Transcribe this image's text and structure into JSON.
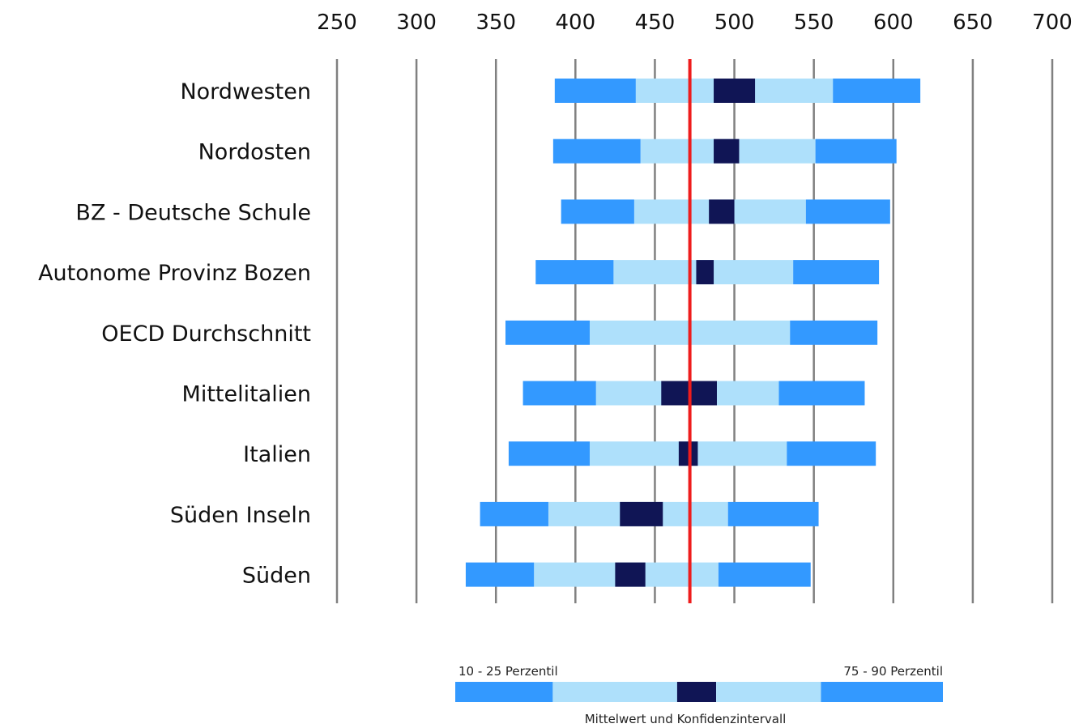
{
  "chart_data": {
    "type": "bar",
    "orientation": "horizontal-percentile-bands",
    "x_axis": {
      "ticks": [
        250,
        300,
        350,
        400,
        450,
        500,
        550,
        600,
        650,
        700
      ],
      "range": [
        250,
        700
      ],
      "position": "top",
      "grid": true
    },
    "reference_line": {
      "value": 472,
      "color": "#ee1c1c"
    },
    "categories": [
      "Nordwesten",
      "Nordosten",
      "BZ - Deutsche Schule",
      "Autonome Provinz Bozen",
      "OECD Durchschnitt",
      "Mittelitalien",
      "Italien",
      "Süden Inseln",
      "Süden"
    ],
    "rows": [
      {
        "p10": 387,
        "p25": 438,
        "ci_low": 487,
        "ci_high": 513,
        "p75": 562,
        "p90": 617
      },
      {
        "p10": 386,
        "p25": 441,
        "ci_low": 487,
        "ci_high": 503,
        "p75": 551,
        "p90": 602
      },
      {
        "p10": 391,
        "p25": 437,
        "ci_low": 484,
        "ci_high": 500,
        "p75": 545,
        "p90": 598
      },
      {
        "p10": 375,
        "p25": 424,
        "ci_low": 476,
        "ci_high": 487,
        "p75": 537,
        "p90": 591
      },
      {
        "p10": 356,
        "p25": 409,
        "ci_low": null,
        "ci_high": null,
        "p75": 535,
        "p90": 590
      },
      {
        "p10": 367,
        "p25": 413,
        "ci_low": 454,
        "ci_high": 489,
        "p75": 528,
        "p90": 582
      },
      {
        "p10": 358,
        "p25": 409,
        "ci_low": 465,
        "ci_high": 477,
        "p75": 533,
        "p90": 589
      },
      {
        "p10": 340,
        "p25": 383,
        "ci_low": 428,
        "ci_high": 455,
        "p75": 496,
        "p90": 553
      },
      {
        "p10": 331,
        "p25": 374,
        "ci_low": 425,
        "ci_high": 444,
        "p75": 490,
        "p90": 548
      }
    ],
    "colors": {
      "outer_percentiles": "#3399ff",
      "inner_percentiles": "#aee0fb",
      "confidence_interval": "#101555",
      "grid": "#808080"
    },
    "legend": {
      "left_label": "10 - 25 Perzentil",
      "right_label": "75 - 90 Perzentil",
      "bottom_label": "Mittelwert und Konfidenzintervall",
      "placement": "bottom",
      "segments": [
        {
          "role": "outer",
          "value": 0.2
        },
        {
          "role": "inner",
          "value": 0.255
        },
        {
          "role": "ci",
          "value": 0.08
        },
        {
          "role": "inner",
          "value": 0.215
        },
        {
          "role": "outer",
          "value": 0.25
        }
      ]
    }
  }
}
